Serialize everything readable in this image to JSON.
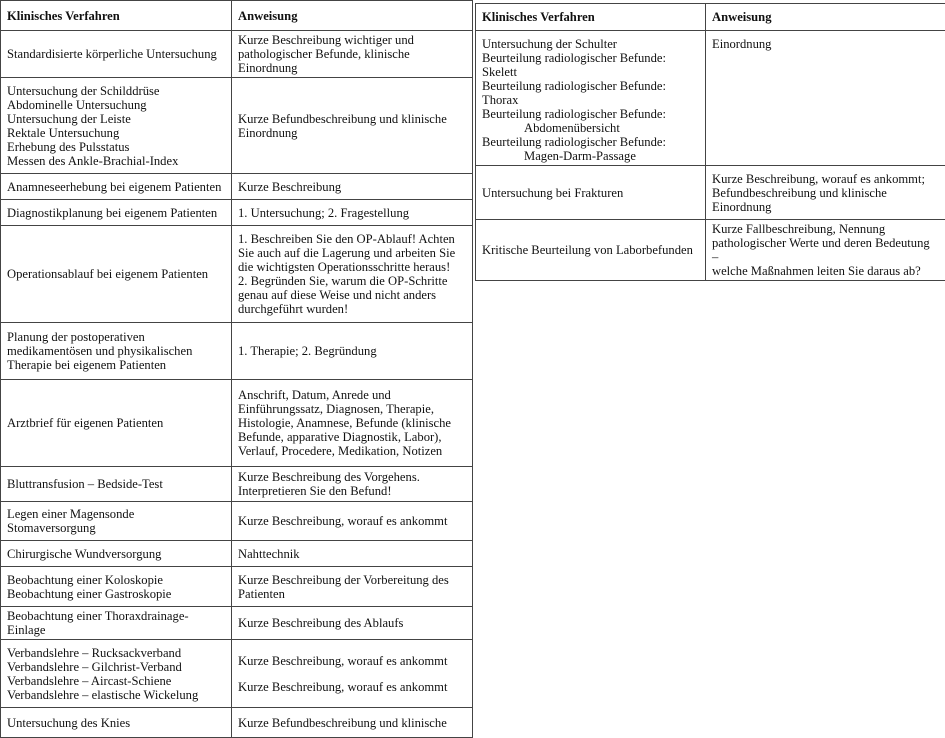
{
  "left_table": {
    "headers": [
      "Klinisches Verfahren",
      "Anweisung"
    ],
    "rows": [
      {
        "procedure": [
          "Standardisierte körperliche Untersuchung"
        ],
        "instruction": [
          [
            "Kurze Beschreibung wichtiger und",
            "pathologischer Befunde, klinische Einordnung"
          ]
        ]
      },
      {
        "procedure": [
          "Untersuchung der Schilddrüse",
          "Abdominelle Untersuchung",
          "Untersuchung der Leiste",
          "Rektale Untersuchung",
          "Erhebung des Pulsstatus",
          "Messen des Ankle-Brachial-Index"
        ],
        "instruction": [
          [
            "Kurze Befundbeschreibung und klinische",
            "Einordnung"
          ]
        ]
      },
      {
        "procedure": [
          "Anamneseerhebung bei eigenem Patienten"
        ],
        "instruction": [
          [
            "Kurze Beschreibung"
          ]
        ]
      },
      {
        "procedure": [
          "Diagnostikplanung bei eigenem Patienten"
        ],
        "instruction": [
          [
            "1. Untersuchung; 2. Fragestellung"
          ]
        ]
      },
      {
        "procedure": [
          "Operationsablauf bei eigenem Patienten"
        ],
        "instruction": [
          [
            "1. Beschreiben Sie den OP-Ablauf! Achten",
            "Sie auch auf die Lagerung und arbeiten Sie",
            "die wichtigsten Operationsschritte heraus!",
            "2. Begründen Sie, warum die OP-Schritte",
            "genau auf diese Weise und nicht anders",
            "durchgeführt wurden!"
          ]
        ]
      },
      {
        "procedure": [
          "Planung der postoperativen",
          "medikamentösen und physikalischen",
          "Therapie bei eigenem Patienten"
        ],
        "instruction": [
          [
            "1. Therapie; 2. Begründung"
          ]
        ]
      },
      {
        "procedure": [
          "Arztbrief für eigenen Patienten"
        ],
        "instruction": [
          [
            "Anschrift, Datum, Anrede und",
            "Einführungssatz, Diagnosen, Therapie,",
            "Histologie, Anamnese, Befunde (klinische",
            "Befunde, apparative Diagnostik, Labor),",
            "Verlauf, Procedere, Medikation, Notizen"
          ]
        ]
      },
      {
        "procedure": [
          "Bluttransfusion – Bedside-Test"
        ],
        "instruction": [
          [
            "Kurze Beschreibung des Vorgehens.",
            "Interpretieren Sie den Befund!"
          ]
        ]
      },
      {
        "procedure": [
          "Legen einer Magensonde",
          "Stomaversorgung"
        ],
        "instruction": [
          [
            "Kurze Beschreibung, worauf es ankommt"
          ]
        ]
      },
      {
        "procedure": [
          "Chirurgische Wundversorgung"
        ],
        "instruction": [
          [
            "Nahttechnik"
          ]
        ]
      },
      {
        "procedure": [
          "Beobachtung einer Koloskopie",
          "Beobachtung einer Gastroskopie"
        ],
        "instruction": [
          [
            "Kurze Beschreibung der Vorbereitung des",
            "Patienten"
          ]
        ]
      },
      {
        "procedure": [
          "Beobachtung einer Thoraxdrainage-Einlage"
        ],
        "instruction": [
          [
            "Kurze Beschreibung des Ablaufs"
          ]
        ]
      },
      {
        "procedure": [
          "Verbandslehre – Rucksackverband",
          "Verbandslehre – Gilchrist-Verband",
          "Verbandslehre – Aircast-Schiene",
          "Verbandslehre – elastische Wickelung"
        ],
        "instruction": [
          [
            "Kurze Beschreibung, worauf es ankommt"
          ],
          [
            "Kurze Beschreibung, worauf es ankommt"
          ]
        ]
      },
      {
        "procedure": [
          "Untersuchung des Knies"
        ],
        "instruction": [
          [
            "Kurze Befundbeschreibung und klinische"
          ]
        ]
      }
    ]
  },
  "right_table": {
    "headers": [
      "Klinisches Verfahren",
      "Anweisung"
    ],
    "rows": [
      {
        "procedure": [
          {
            "text": "Untersuchung der Schulter"
          },
          {
            "text": "Beurteilung radiologischer Befunde: Skelett"
          },
          {
            "text": "Beurteilung radiologischer Befunde: Thorax"
          },
          {
            "text": "Beurteilung radiologischer Befunde:"
          },
          {
            "text": "Abdomenübersicht",
            "indent": true
          },
          {
            "text": "Beurteilung radiologischer Befunde:"
          },
          {
            "text": "Magen-Darm-Passage",
            "indent": true
          }
        ],
        "instruction": [
          [
            "Einordnung"
          ]
        ]
      },
      {
        "procedure": [
          "Untersuchung bei Frakturen"
        ],
        "instruction": [
          [
            "Kurze Beschreibung, worauf es ankommt;",
            "Befundbeschreibung und klinische",
            "Einordnung"
          ]
        ]
      },
      {
        "procedure": [
          "Kritische Beurteilung von Laborbefunden"
        ],
        "instruction": [
          [
            "Kurze Fallbeschreibung, Nennung",
            "pathologischer Werte und deren Bedeutung –",
            "welche Maßnahmen leiten Sie daraus ab?"
          ]
        ]
      }
    ]
  }
}
